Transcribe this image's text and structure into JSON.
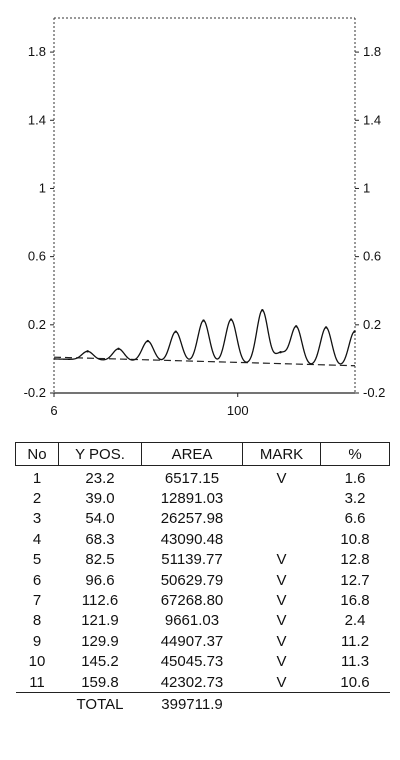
{
  "chart_data": {
    "type": "line",
    "ylim": [
      -0.2,
      2.0
    ],
    "y_ticks": [
      "1.8",
      "1.4",
      "1",
      "0.6",
      "0.2",
      "-0.2"
    ],
    "y_tick_values": [
      1.8,
      1.4,
      1,
      0.6,
      0.2,
      -0.2
    ],
    "x_ticks": [
      "6",
      "100"
    ],
    "x_tick_values": [
      6,
      100
    ],
    "xlim": [
      6,
      160
    ],
    "baseline": [
      [
        6,
        0.01
      ],
      [
        160,
        -0.04
      ]
    ],
    "peaks": [
      {
        "no": 1,
        "x": 23.2,
        "height": 0.05
      },
      {
        "no": 2,
        "x": 39.0,
        "height": 0.07
      },
      {
        "no": 3,
        "x": 54.0,
        "height": 0.12
      },
      {
        "no": 4,
        "x": 68.3,
        "height": 0.18
      },
      {
        "no": 5,
        "x": 82.5,
        "height": 0.25
      },
      {
        "no": 6,
        "x": 96.6,
        "height": 0.26
      },
      {
        "no": 7,
        "x": 112.6,
        "height": 0.32
      },
      {
        "no": 8,
        "x": 121.9,
        "height": 0.07
      },
      {
        "no": 9,
        "x": 129.9,
        "height": 0.23
      },
      {
        "no": 10,
        "x": 145.2,
        "height": 0.23
      },
      {
        "no": 11,
        "x": 159.8,
        "height": 0.21
      }
    ],
    "grid": false
  },
  "table": {
    "headers": [
      "No",
      "Y POS.",
      "AREA",
      "MARK",
      "%"
    ],
    "rows": [
      [
        "1",
        "23.2",
        "6517.15",
        "V",
        "1.6"
      ],
      [
        "2",
        "39.0",
        "12891.03",
        "",
        "3.2"
      ],
      [
        "3",
        "54.0",
        "26257.98",
        "",
        "6.6"
      ],
      [
        "4",
        "68.3",
        "43090.48",
        "",
        "10.8"
      ],
      [
        "5",
        "82.5",
        "51139.77",
        "V",
        "12.8"
      ],
      [
        "6",
        "96.6",
        "50629.79",
        "V",
        "12.7"
      ],
      [
        "7",
        "112.6",
        "67268.80",
        "V",
        "16.8"
      ],
      [
        "8",
        "121.9",
        "9661.03",
        "V",
        "2.4"
      ],
      [
        "9",
        "129.9",
        "44907.37",
        "V",
        "11.2"
      ],
      [
        "10",
        "145.2",
        "45045.73",
        "V",
        "11.3"
      ],
      [
        "11",
        "159.8",
        "42302.73",
        "V",
        "10.6"
      ]
    ],
    "total_label": "TOTAL",
    "total_value": "399711.9"
  }
}
